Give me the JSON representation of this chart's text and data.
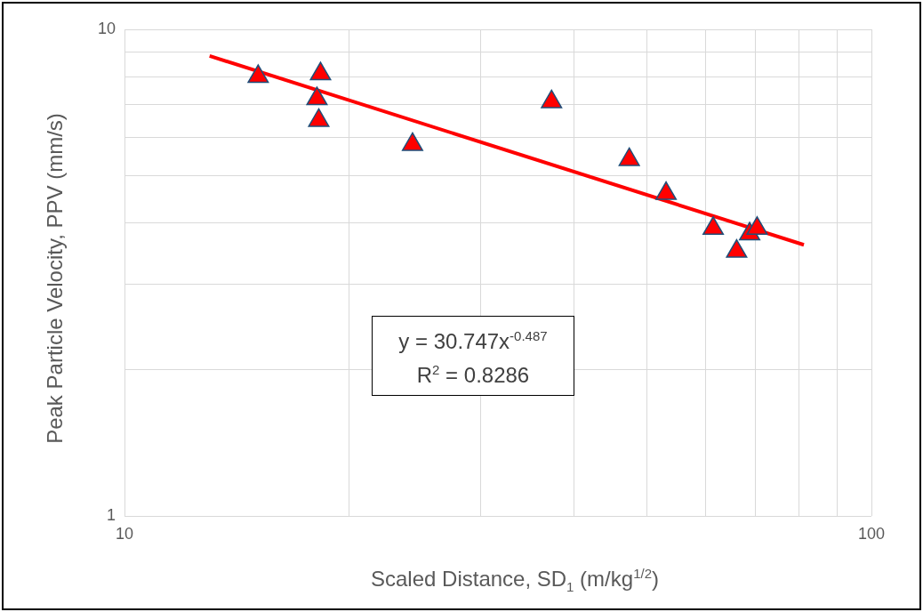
{
  "chart_data": {
    "type": "scatter",
    "xlabel": "Scaled Distance, SD$_{1}$ (m/kg$^{1/2}$)",
    "ylabel": "Peak Particle Velocity, PPV (mm/s)",
    "log": "xy",
    "xlim": [
      10,
      100
    ],
    "ylim": [
      1,
      10
    ],
    "xticks": [
      10,
      {
        "value": 20,
        "label": null
      },
      {
        "value": 30,
        "label": null
      },
      {
        "value": 40,
        "label": null
      },
      {
        "value": 50,
        "label": null
      },
      {
        "value": 60,
        "label": null
      },
      {
        "value": 70,
        "label": null
      },
      {
        "value": 80,
        "label": null
      },
      {
        "value": 90,
        "label": null
      },
      100
    ],
    "yticks": [
      1,
      {
        "value": 2,
        "label": null
      },
      {
        "value": 3,
        "label": null
      },
      {
        "value": 4,
        "label": null
      },
      {
        "value": 5,
        "label": null
      },
      {
        "value": 6,
        "label": null
      },
      {
        "value": 7,
        "label": null
      },
      {
        "value": 8,
        "label": null
      },
      {
        "value": 9,
        "label": null
      },
      10
    ],
    "grid": true,
    "annotations": [
      "y = 30.747x$^{-0.487}$",
      "R$^{2}$ = 0.8286"
    ],
    "series": [
      {
        "marker": "triangle",
        "color": "#ff0000",
        "x": [
          15.1,
          18.3,
          18.1,
          18.2,
          24.3,
          37.3,
          47.4,
          53.1,
          61.4,
          66.0,
          68.7,
          70.3
        ],
        "values": [
          8.0,
          8.1,
          7.2,
          6.5,
          5.8,
          7.1,
          5.4,
          4.6,
          3.9,
          3.5,
          3.8,
          3.9
        ]
      },
      {
        "type": "line",
        "marker": "none",
        "color": "#ff0000",
        "x": [
          13.0,
          81.2
        ],
        "values": [
          8.82,
          3.61
        ]
      }
    ]
  }
}
